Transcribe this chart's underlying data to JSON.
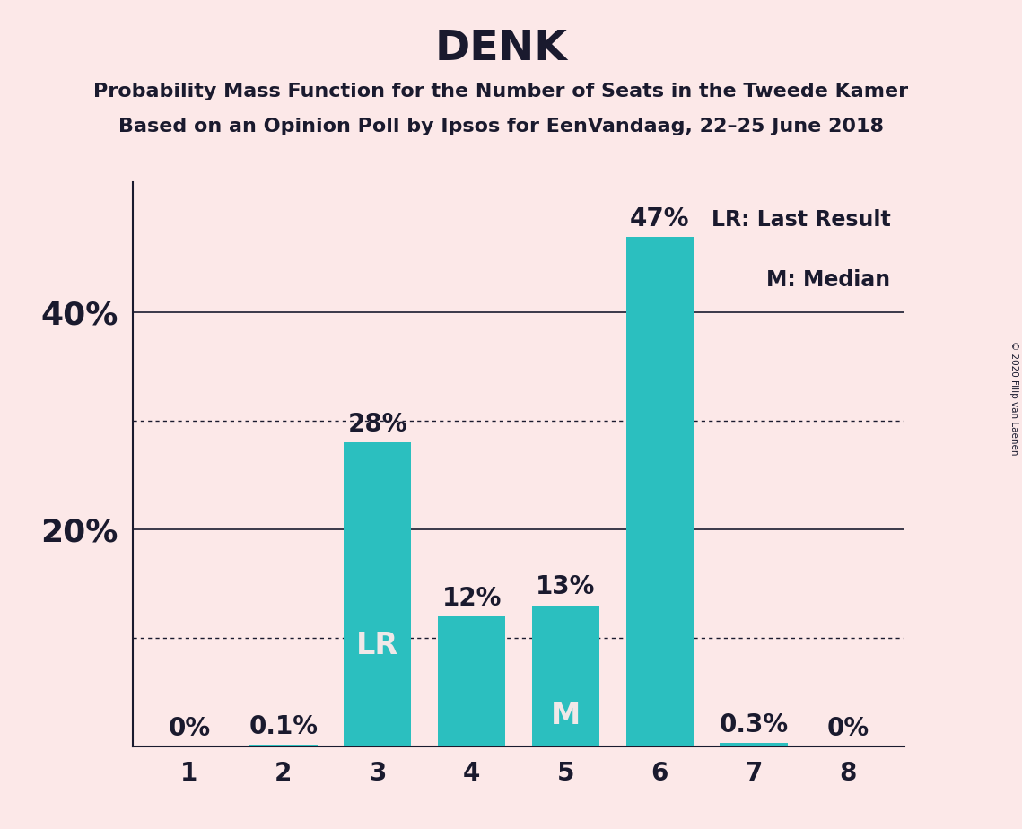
{
  "title": "DENK",
  "subtitle1": "Probability Mass Function for the Number of Seats in the Tweede Kamer",
  "subtitle2": "Based on an Opinion Poll by Ipsos for EenVandaag, 22–25 June 2018",
  "copyright": "© 2020 Filip van Laenen",
  "categories": [
    1,
    2,
    3,
    4,
    5,
    6,
    7,
    8
  ],
  "values": [
    0.0,
    0.1,
    28.0,
    12.0,
    13.0,
    47.0,
    0.3,
    0.0
  ],
  "labels": [
    "0%",
    "0.1%",
    "28%",
    "12%",
    "13%",
    "47%",
    "0.3%",
    "0%"
  ],
  "bar_color": "#2bbfbf",
  "background_color": "#fce8e8",
  "bar_label_color_inside": "#f0e8e8",
  "bar_label_color_outside": "#1a1a2e",
  "lr_bar_index": 2,
  "m_bar_index": 4,
  "legend_text1": "LR: Last Result",
  "legend_text2": "M: Median",
  "ylim": [
    0,
    52
  ],
  "solid_gridlines": [
    20,
    40
  ],
  "dotted_gridlines": [
    10,
    30
  ],
  "ytick_positions": [
    20,
    40
  ],
  "ytick_labels": [
    "20%",
    "40%"
  ],
  "title_fontsize": 34,
  "subtitle_fontsize": 16,
  "axis_fontsize": 20,
  "bar_label_fontsize": 20,
  "special_label_fontsize": 24,
  "ytick_fontsize": 26,
  "legend_fontsize": 17
}
